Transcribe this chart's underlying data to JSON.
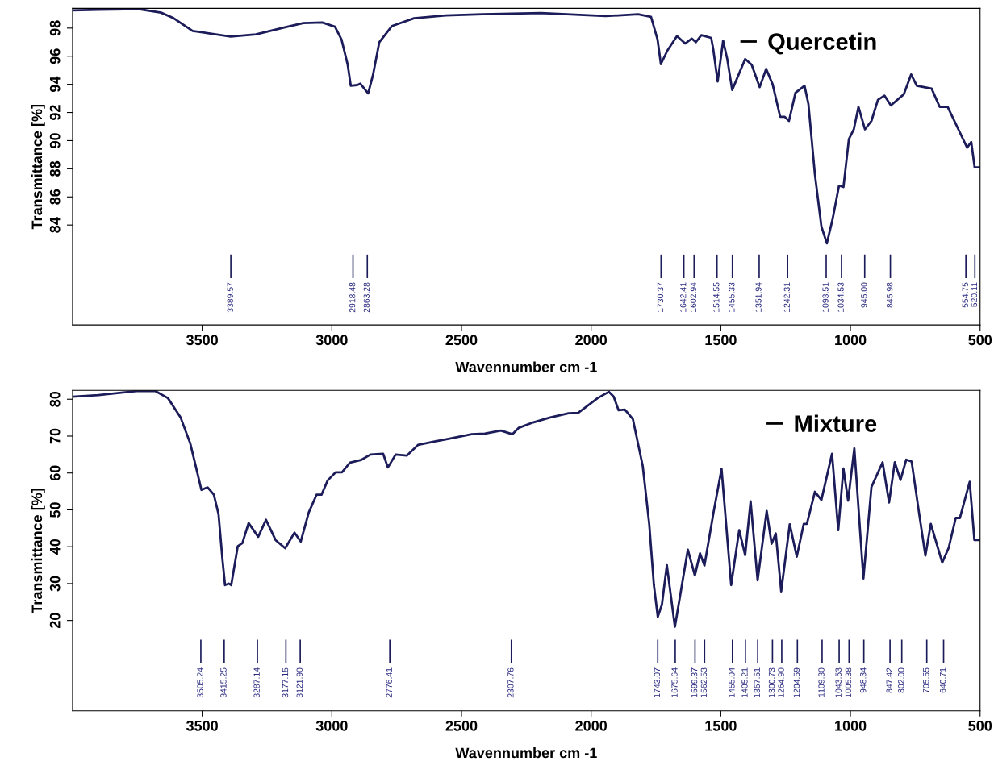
{
  "chart_data": [
    {
      "type": "line",
      "xlabel": "Wavennumber cm -1",
      "ylabel": "Transmittance [%]",
      "xlim": [
        4000,
        500
      ],
      "ylim": [
        76.9,
        99.4
      ],
      "xticks": [
        3500,
        3000,
        2500,
        2000,
        1500,
        1000,
        500
      ],
      "yticks": [
        84,
        86,
        88,
        90,
        92,
        94,
        96,
        98
      ],
      "grid": false,
      "legend": "top right",
      "marker": "none",
      "line_style": "solid",
      "series": [
        {
          "name": "Quercetin",
          "color": "#1c1c5a",
          "x": [
            4000,
            3902,
            3744,
            3659,
            3610,
            3537,
            3390,
            3293,
            3171,
            3110,
            3037,
            2988,
            2963,
            2939,
            2927,
            2902,
            2890,
            2860,
            2841,
            2817,
            2768,
            2683,
            2561,
            2419,
            2194,
            1944,
            1819,
            1769,
            1744,
            1731,
            1706,
            1669,
            1637,
            1612,
            1596,
            1575,
            1537,
            1529,
            1512,
            1491,
            1475,
            1456,
            1406,
            1381,
            1350,
            1325,
            1300,
            1271,
            1254,
            1237,
            1212,
            1177,
            1162,
            1137,
            1112,
            1091,
            1069,
            1044,
            1027,
            1006,
            987,
            969,
            944,
            919,
            894,
            869,
            844,
            794,
            766,
            744,
            687,
            656,
            625,
            581,
            550,
            534,
            521,
            500
          ],
          "values": [
            99.26,
            99.3,
            99.35,
            99.1,
            98.7,
            97.8,
            97.4,
            97.55,
            98.1,
            98.35,
            98.4,
            98.1,
            97.2,
            95.4,
            93.9,
            93.95,
            94.05,
            93.36,
            94.7,
            97.0,
            98.15,
            98.7,
            98.9,
            98.98,
            99.07,
            98.85,
            98.98,
            98.8,
            97.2,
            95.44,
            96.4,
            97.43,
            96.9,
            97.25,
            97.0,
            97.5,
            97.3,
            96.5,
            94.2,
            97.1,
            95.8,
            93.6,
            95.8,
            95.4,
            93.8,
            95.1,
            94.0,
            91.7,
            91.7,
            91.4,
            93.4,
            93.9,
            92.6,
            87.6,
            83.9,
            82.7,
            84.4,
            86.8,
            86.7,
            90.1,
            90.8,
            92.4,
            90.8,
            91.4,
            92.9,
            93.2,
            92.5,
            93.3,
            94.7,
            93.9,
            93.7,
            92.4,
            92.4,
            90.7,
            89.5,
            89.9,
            88.1,
            88.1
          ]
        }
      ],
      "annotations": [
        "3389.57",
        "2918.48",
        "2863.28",
        "1730.37",
        "1642.41",
        "1602.94",
        "1514.55",
        "1455.33",
        "1351.94",
        "1242.31",
        "1093.51",
        "1034.53",
        "945.00",
        "845.98",
        "554.75",
        "520.11"
      ]
    },
    {
      "type": "line",
      "xlabel": "Wavennumber cm -1",
      "ylabel": "Transmittance [%]",
      "xlim": [
        4000,
        500
      ],
      "ylim": [
        -4.5,
        82.4
      ],
      "xticks": [
        3500,
        3000,
        2500,
        2000,
        1500,
        1000,
        500
      ],
      "yticks": [
        20,
        30,
        40,
        50,
        60,
        70,
        80
      ],
      "grid": false,
      "legend": "top right",
      "marker": "none",
      "line_style": "solid",
      "series": [
        {
          "name": "Mixture",
          "color": "#1c1c5a",
          "x": [
            4000,
            3900,
            3754,
            3680,
            3632,
            3583,
            3546,
            3522,
            3503,
            3479,
            3455,
            3437,
            3422,
            3412,
            3398,
            3388,
            3363,
            3345,
            3321,
            3284,
            3254,
            3217,
            3180,
            3144,
            3120,
            3089,
            3059,
            3040,
            3016,
            2985,
            2961,
            2930,
            2888,
            2851,
            2802,
            2784,
            2754,
            2711,
            2668,
            2607,
            2546,
            2461,
            2410,
            2348,
            2304,
            2280,
            2224,
            2161,
            2087,
            2050,
            1975,
            1932,
            1913,
            1894,
            1870,
            1839,
            1801,
            1776,
            1758,
            1743,
            1727,
            1708,
            1677,
            1658,
            1627,
            1600,
            1580,
            1563,
            1528,
            1497,
            1460,
            1429,
            1406,
            1385,
            1358,
            1323,
            1304,
            1288,
            1267,
            1234,
            1207,
            1180,
            1168,
            1137,
            1112,
            1071,
            1047,
            1027,
            1009,
            985,
            950,
            919,
            876,
            851,
            829,
            807,
            785,
            764,
            739,
            711,
            690,
            646,
            621,
            594,
            578,
            540,
            522,
            500
          ],
          "values": [
            80.7,
            81.1,
            82.2,
            82.2,
            80.3,
            75.0,
            68.0,
            61.0,
            55.4,
            56.1,
            54.1,
            48.8,
            36.6,
            29.6,
            30.0,
            29.6,
            40.1,
            41.0,
            46.4,
            42.7,
            47.3,
            41.8,
            39.6,
            43.8,
            41.4,
            49.3,
            54.1,
            54.1,
            58.0,
            60.2,
            60.2,
            62.8,
            63.5,
            65.0,
            65.2,
            61.5,
            65.0,
            64.7,
            67.6,
            68.5,
            69.3,
            70.5,
            70.7,
            71.5,
            70.5,
            72.2,
            73.7,
            75.0,
            76.2,
            76.3,
            80.3,
            82.0,
            80.7,
            77.0,
            77.2,
            74.6,
            61.9,
            46.2,
            29.6,
            21.0,
            24.3,
            35.0,
            18.3,
            26.2,
            39.2,
            32.2,
            38.2,
            34.9,
            49.3,
            61.1,
            29.6,
            44.5,
            37.7,
            52.3,
            30.9,
            49.7,
            40.8,
            43.6,
            27.9,
            46.1,
            37.3,
            46.2,
            46.2,
            54.9,
            52.7,
            65.2,
            44.5,
            61.2,
            52.5,
            66.7,
            31.4,
            56.2,
            62.9,
            52.0,
            62.9,
            58.1,
            63.6,
            63.1,
            50.9,
            37.6,
            46.2,
            35.7,
            39.7,
            47.8,
            47.8,
            57.6,
            41.8,
            41.8
          ]
        }
      ],
      "annotations": [
        "3505.24",
        "3415.25",
        "3287.14",
        "3177.15",
        "3121.90",
        "2776.41",
        "2307.76",
        "1743.07",
        "1675.64",
        "1599.37",
        "1562.53",
        "1455.04",
        "1405.21",
        "1357.51",
        "1300.73",
        "1264.90",
        "1204.59",
        "1109.30",
        "1043.53",
        "1005.38",
        "948.34",
        "847.42",
        "802.00",
        "705.55",
        "640.71"
      ]
    }
  ]
}
